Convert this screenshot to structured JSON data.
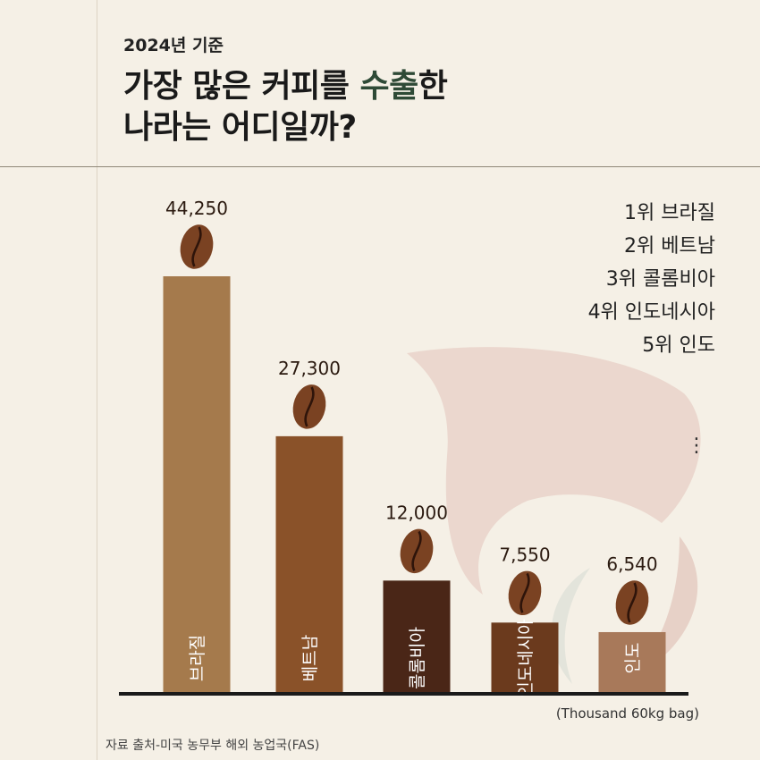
{
  "header": {
    "year": "2024년 기준",
    "title_line1_pre": "가장 많은 커피를 ",
    "title_line1_highlight": "수출",
    "title_line1_post": "한",
    "title_line2": "나라는 어디일까?"
  },
  "ranking": [
    "1위 브라질",
    "2위 베트남",
    "3위 콜롬비아",
    "4위 인도네시아",
    "5위 인도"
  ],
  "ellipsis": "⋮",
  "unit_label": "(Thousand 60kg bag)",
  "source": "자료 출처-미국 농무부 해외 농업국(FAS)",
  "chart_data": {
    "type": "bar",
    "categories": [
      "브라질",
      "베트남",
      "콜롬비아",
      "인도네시아",
      "인도"
    ],
    "values": [
      44250,
      27300,
      12000,
      7550,
      6540
    ],
    "value_labels": [
      "44,250",
      "27,300",
      "12,000",
      "7,550",
      "6,540"
    ],
    "bar_colors": [
      "#a57a4c",
      "#8a5229",
      "#4a2617",
      "#6b3a1d",
      "#a8795a"
    ],
    "xlabel": "",
    "ylabel": "",
    "ylim": [
      0,
      44250
    ],
    "grid": false,
    "legend": "none"
  },
  "colors": {
    "background": "#f5f0e6",
    "highlight": "#2e4a36",
    "bean": "#7a4222",
    "bean_crease": "#2e140a",
    "axis": "#1a1a1a"
  },
  "icons": {
    "bean": "coffee-bean-icon",
    "background_logo": "coffee-bird-logo-icon"
  }
}
